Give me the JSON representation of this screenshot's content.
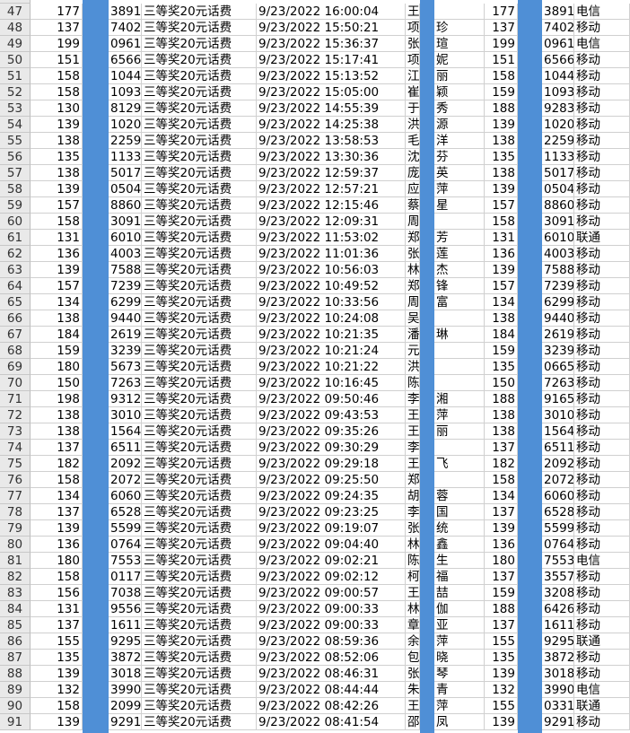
{
  "rows": [
    [
      "47",
      "177",
      "3891",
      "三等奖20元话费",
      "9/23/2022 16:00:04",
      "王",
      null,
      "177",
      "3891",
      "电信"
    ],
    [
      "48",
      "137",
      "7402",
      "三等奖20元话费",
      "9/23/2022 15:50:21",
      "项",
      "珍",
      "137",
      "7402",
      "移动"
    ],
    [
      "49",
      "199",
      "0961",
      "三等奖20元话费",
      "9/23/2022 15:36:37",
      "张",
      "瑄",
      "199",
      "0961",
      "电信"
    ],
    [
      "50",
      "151",
      "6566",
      "三等奖20元话费",
      "9/23/2022 15:17:41",
      "项",
      "妮",
      "151",
      "6566",
      "移动"
    ],
    [
      "51",
      "158",
      "1044",
      "三等奖20元话费",
      "9/23/2022 15:13:52",
      "江",
      "丽",
      "158",
      "1044",
      "移动"
    ],
    [
      "52",
      "158",
      "1093",
      "三等奖20元话费",
      "9/23/2022 15:05:00",
      "崔",
      "颖",
      "159",
      "1093",
      "移动"
    ],
    [
      "53",
      "130",
      "8129",
      "三等奖20元话费",
      "9/23/2022 14:55:39",
      "于",
      "秀",
      "188",
      "9283",
      "移动"
    ],
    [
      "54",
      "139",
      "1020",
      "三等奖20元话费",
      "9/23/2022 14:25:38",
      "洪",
      "源",
      "139",
      "1020",
      "移动"
    ],
    [
      "55",
      "138",
      "2259",
      "三等奖20元话费",
      "9/23/2022 13:58:53",
      "毛",
      "洋",
      "138",
      "2259",
      "移动"
    ],
    [
      "56",
      "135",
      "1133",
      "三等奖20元话费",
      "9/23/2022 13:30:36",
      "沈",
      "芬",
      "135",
      "1133",
      "移动"
    ],
    [
      "57",
      "138",
      "5017",
      "三等奖20元话费",
      "9/23/2022 12:59:37",
      "庞",
      "英",
      "138",
      "5017",
      "移动"
    ],
    [
      "58",
      "139",
      "0504",
      "三等奖20元话费",
      "9/23/2022 12:57:21",
      "应",
      "萍",
      "139",
      "0504",
      "移动"
    ],
    [
      "59",
      "157",
      "8860",
      "三等奖20元话费",
      "9/23/2022 12:15:46",
      "蔡",
      "星",
      "157",
      "8860",
      "移动"
    ],
    [
      "60",
      "158",
      "3091",
      "三等奖20元话费",
      "9/23/2022 12:09:31",
      "周",
      null,
      "158",
      "3091",
      "移动"
    ],
    [
      "61",
      "131",
      "6010",
      "三等奖20元话费",
      "9/23/2022 11:53:02",
      "郑",
      "芳",
      "131",
      "6010",
      "联通"
    ],
    [
      "62",
      "136",
      "4003",
      "三等奖20元话费",
      "9/23/2022 11:01:36",
      "张",
      "莲",
      "136",
      "4003",
      "移动"
    ],
    [
      "63",
      "139",
      "7588",
      "三等奖20元话费",
      "9/23/2022 10:56:03",
      "林",
      "杰",
      "139",
      "7588",
      "移动"
    ],
    [
      "64",
      "157",
      "7239",
      "三等奖20元话费",
      "9/23/2022 10:49:52",
      "郑",
      "锋",
      "157",
      "7239",
      "移动"
    ],
    [
      "65",
      "134",
      "6299",
      "三等奖20元话费",
      "9/23/2022 10:33:56",
      "周",
      "富",
      "134",
      "6299",
      "移动"
    ],
    [
      "66",
      "138",
      "9440",
      "三等奖20元话费",
      "9/23/2022 10:24:08",
      "吴",
      null,
      "138",
      "9440",
      "移动"
    ],
    [
      "67",
      "184",
      "2619",
      "三等奖20元话费",
      "9/23/2022 10:21:35",
      "潘",
      "琳",
      "184",
      "2619",
      "移动"
    ],
    [
      "68",
      "159",
      "3239",
      "三等奖20元话费",
      "9/23/2022 10:21:24",
      "元",
      null,
      "159",
      "3239",
      "移动"
    ],
    [
      "69",
      "180",
      "5673",
      "三等奖20元话费",
      "9/23/2022 10:21:22",
      "洪",
      null,
      "135",
      "0665",
      "移动"
    ],
    [
      "70",
      "150",
      "7263",
      "三等奖20元话费",
      "9/23/2022 10:16:45",
      "陈",
      null,
      "150",
      "7263",
      "移动"
    ],
    [
      "71",
      "198",
      "9312",
      "三等奖20元话费",
      "9/23/2022 09:50:46",
      "李",
      "湘",
      "188",
      "9165",
      "移动"
    ],
    [
      "72",
      "138",
      "3010",
      "三等奖20元话费",
      "9/23/2022 09:43:53",
      "王",
      "萍",
      "138",
      "3010",
      "移动"
    ],
    [
      "73",
      "138",
      "1564",
      "三等奖20元话费",
      "9/23/2022 09:35:26",
      "王",
      "丽",
      "138",
      "1564",
      "移动"
    ],
    [
      "74",
      "137",
      "6511",
      "三等奖20元话费",
      "9/23/2022 09:30:29",
      "李",
      null,
      "137",
      "6511",
      "移动"
    ],
    [
      "75",
      "182",
      "2092",
      "三等奖20元话费",
      "9/23/2022 09:29:18",
      "王",
      "飞",
      "182",
      "2092",
      "移动"
    ],
    [
      "76",
      "158",
      "2072",
      "三等奖20元话费",
      "9/23/2022 09:25:50",
      "郑",
      null,
      "158",
      "2072",
      "移动"
    ],
    [
      "77",
      "134",
      "6060",
      "三等奖20元话费",
      "9/23/2022 09:24:35",
      "胡",
      "蓉",
      "134",
      "6060",
      "移动"
    ],
    [
      "78",
      "137",
      "6528",
      "三等奖20元话费",
      "9/23/2022 09:23:25",
      "李",
      "国",
      "137",
      "6528",
      "移动"
    ],
    [
      "79",
      "139",
      "5599",
      "三等奖20元话费",
      "9/23/2022 09:19:07",
      "张",
      "统",
      "139",
      "5599",
      "移动"
    ],
    [
      "80",
      "136",
      "0764",
      "三等奖20元话费",
      "9/23/2022 09:04:40",
      "林",
      "鑫",
      "136",
      "0764",
      "移动"
    ],
    [
      "81",
      "180",
      "7553",
      "三等奖20元话费",
      "9/23/2022 09:02:21",
      "陈",
      "生",
      "180",
      "7553",
      "电信"
    ],
    [
      "82",
      "158",
      "0117",
      "三等奖20元话费",
      "9/23/2022 09:02:12",
      "柯",
      "福",
      "137",
      "3557",
      "移动"
    ],
    [
      "83",
      "156",
      "7038",
      "三等奖20元话费",
      "9/23/2022 09:00:57",
      "王",
      "喆",
      "159",
      "3208",
      "移动"
    ],
    [
      "84",
      "131",
      "9556",
      "三等奖20元话费",
      "9/23/2022 09:00:33",
      "林",
      "伽",
      "188",
      "6426",
      "移动"
    ],
    [
      "85",
      "137",
      "1611",
      "三等奖20元话费",
      "9/23/2022 09:00:33",
      "章",
      "亚",
      "137",
      "1611",
      "移动"
    ],
    [
      "86",
      "155",
      "9295",
      "三等奖20元话费",
      "9/23/2022 08:59:36",
      "余",
      "萍",
      "155",
      "9295",
      "联通"
    ],
    [
      "87",
      "135",
      "3872",
      "三等奖20元话费",
      "9/23/2022 08:52:06",
      "包",
      "晓",
      "135",
      "3872",
      "移动"
    ],
    [
      "88",
      "139",
      "3018",
      "三等奖20元话费",
      "9/23/2022 08:46:31",
      "张",
      "琴",
      "139",
      "3018",
      "移动"
    ],
    [
      "89",
      "132",
      "3990",
      "三等奖20元话费",
      "9/23/2022 08:44:44",
      "朱",
      "青",
      "132",
      "3990",
      "电信"
    ],
    [
      "90",
      "158",
      "2099",
      "三等奖20元话费",
      "9/23/2022 08:42:26",
      "王",
      "萍",
      "155",
      "0331",
      "联通"
    ],
    [
      "91",
      "139",
      "9291",
      "三等奖20元话费",
      "9/23/2022 08:41:54",
      "邵",
      "凤",
      "139",
      "9291",
      "移动"
    ]
  ]
}
